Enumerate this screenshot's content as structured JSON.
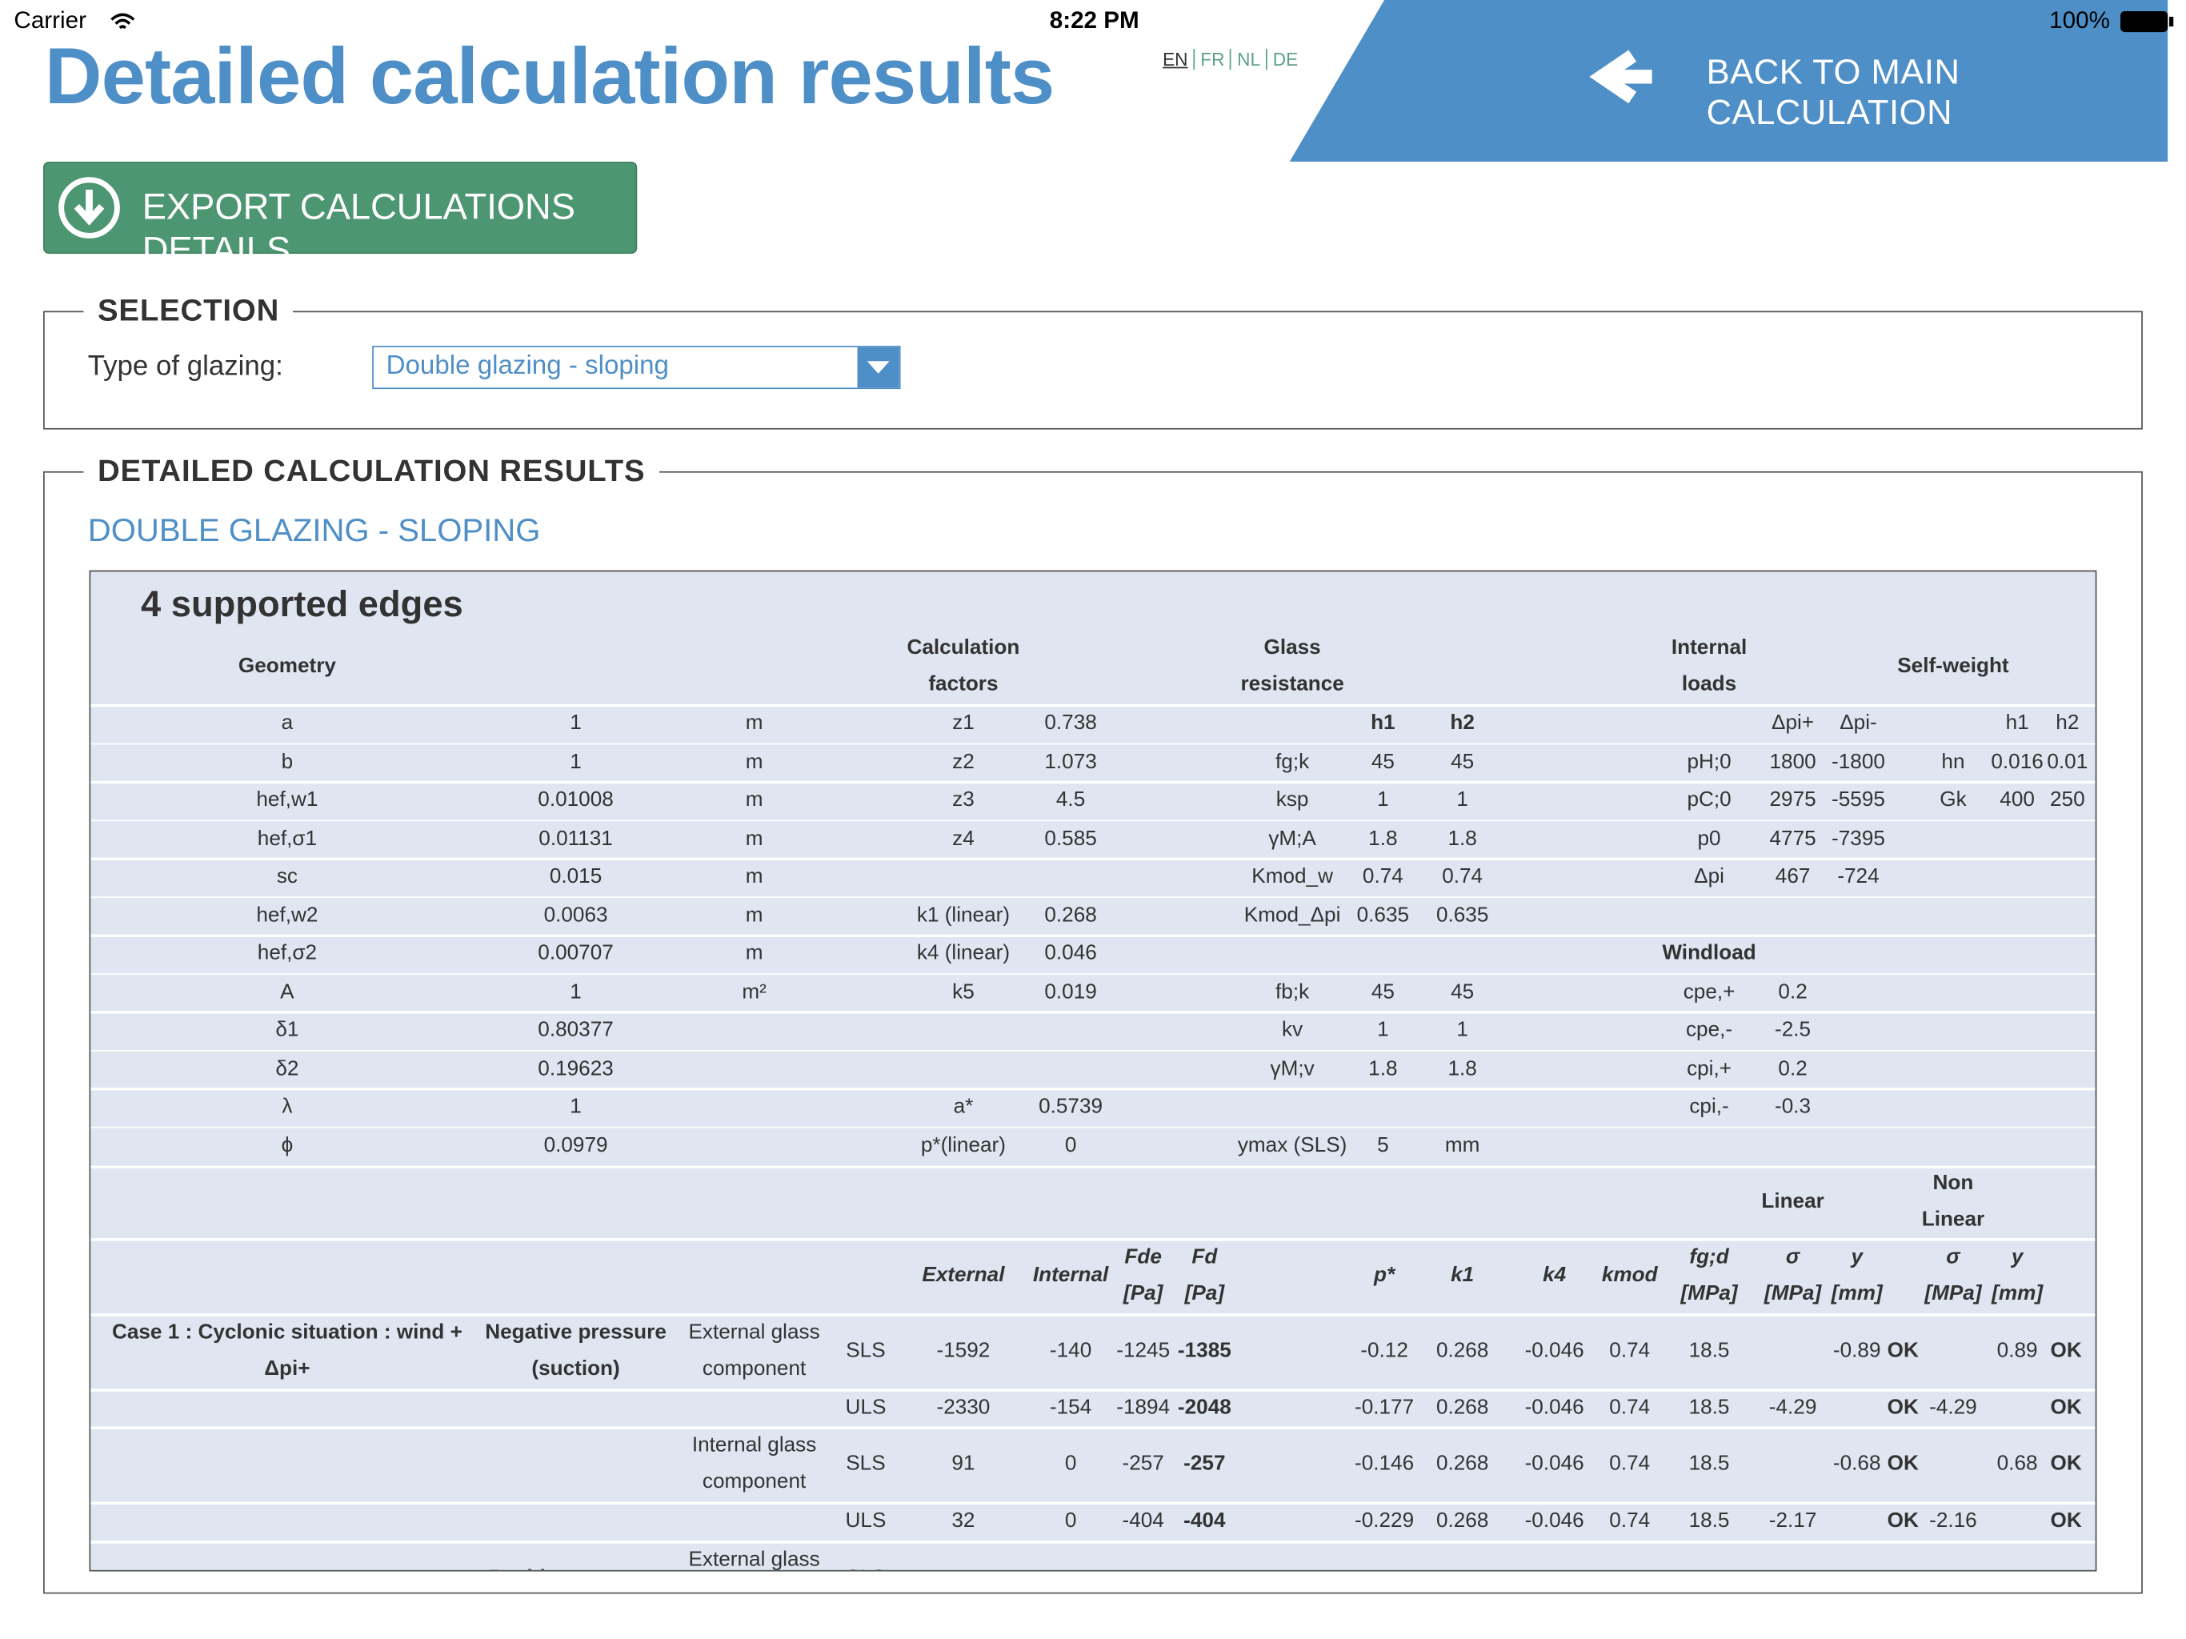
{
  "status_bar": {
    "carrier": "Carrier",
    "time": "8:22 PM",
    "battery": "100%"
  },
  "header": {
    "title": "Detailed calculation results",
    "languages": [
      "EN",
      "FR",
      "NL",
      "DE"
    ],
    "back_button": "BACK TO MAIN CALCULATION"
  },
  "export_button": "EXPORT CALCULATIONS DETAILS",
  "selection": {
    "legend": "SELECTION",
    "label": "Type of glazing:",
    "value": "Double glazing - sloping"
  },
  "results": {
    "legend": "DETAILED CALCULATION RESULTS",
    "subtitle": "DOUBLE GLAZING - SLOPING",
    "table": {
      "title": "4 supported edges",
      "top_header": [
        "Geometry",
        null,
        null,
        "Calculation factors",
        null,
        "Glass resistance",
        null,
        null,
        "Internal loads",
        null,
        null,
        "Self-weight",
        null,
        null
      ],
      "top_rows": [
        [
          "a",
          "1",
          "m",
          "z1",
          "0.738",
          null,
          "h1",
          "h2",
          null,
          "Δpi+",
          "Δpi-",
          null,
          "h1",
          "h2"
        ],
        [
          "b",
          "1",
          "m",
          "z2",
          "1.073",
          "fg;k",
          "45",
          "45",
          "pH;0",
          "1800",
          "-1800",
          "hn",
          "0.016",
          "0.01"
        ],
        [
          "hef,w1",
          "0.01008",
          "m",
          "z3",
          "4.5",
          "ksp",
          "1",
          "1",
          "pC;0",
          "2975",
          "-5595",
          "Gk",
          "400",
          "250"
        ],
        [
          "hef,σ1",
          "0.01131",
          "m",
          "z4",
          "0.585",
          "γM;A",
          "1.8",
          "1.8",
          "p0",
          "4775",
          "-7395",
          null,
          null,
          null
        ],
        [
          "sc",
          "0.015",
          "m",
          null,
          null,
          "Kmod_w",
          "0.74",
          "0.74",
          "Δpi",
          "467",
          "-724",
          null,
          null,
          null
        ],
        [
          "hef,w2",
          "0.0063",
          "m",
          "k1 (linear)",
          "0.268",
          "Kmod_Δpi",
          "0.635",
          "0.635",
          null,
          null,
          null,
          null,
          null,
          null
        ],
        [
          "hef,σ2",
          "0.00707",
          "m",
          "k4 (linear)",
          "0.046",
          null,
          null,
          null,
          "Windload",
          null,
          null,
          null,
          null,
          null
        ],
        [
          "A",
          "1",
          "m²",
          "k5",
          "0.019",
          "fb;k",
          "45",
          "45",
          "cpe,+",
          "0.2",
          null,
          null,
          null,
          null
        ],
        [
          "δ1",
          "0.80377",
          null,
          null,
          null,
          "kv",
          "1",
          "1",
          "cpe,-",
          "-2.5",
          null,
          null,
          null,
          null
        ],
        [
          "δ2",
          "0.19623",
          null,
          null,
          null,
          "γM;v",
          "1.8",
          "1.8",
          "cpi,+",
          "0.2",
          null,
          null,
          null,
          null
        ],
        [
          "λ",
          "1",
          null,
          "a*",
          "0.5739",
          null,
          null,
          null,
          "cpi,-",
          "-0.3",
          null,
          null,
          null,
          null
        ],
        [
          "ϕ",
          "0.0979",
          null,
          "p*(linear)",
          "0",
          "ymax (SLS)",
          "5",
          "mm",
          null,
          null,
          null,
          null,
          null,
          null
        ]
      ],
      "group_header": [
        null,
        null,
        null,
        null,
        null,
        null,
        null,
        null,
        null,
        null,
        null,
        null,
        null,
        "Linear",
        null,
        null,
        "Non Linear",
        null,
        null
      ],
      "column_header": [
        null,
        null,
        null,
        null,
        "External",
        "Internal",
        "Fde [Pa]",
        "Fd [Pa]",
        "p*",
        "k1",
        "k4",
        "kmod",
        "fg;d [MPa]",
        "σ [MPa]",
        "y [mm]",
        null,
        "σ [MPa]",
        "y [mm]",
        null
      ],
      "case_rows": [
        [
          "Case 1 : Cyclonic situation : wind + Δpi+",
          "Negative pressure (suction)",
          "External glass component",
          "SLS",
          "-1592",
          "-140",
          "-1245",
          "-1385",
          "-0.12",
          "0.268",
          "-0.046",
          "0.74",
          "18.5",
          null,
          "-0.89",
          "OK",
          null,
          "0.89",
          "OK"
        ],
        [
          null,
          null,
          null,
          "ULS",
          "-2330",
          "-154",
          "-1894",
          "-2048",
          "-0.177",
          "0.268",
          "-0.046",
          "0.74",
          "18.5",
          "-4.29",
          null,
          "OK",
          "-4.29",
          null,
          "OK"
        ],
        [
          null,
          null,
          "Internal glass component",
          "SLS",
          "91",
          "0",
          "-257",
          "-257",
          "-0.146",
          "0.268",
          "-0.046",
          "0.74",
          "18.5",
          null,
          "-0.68",
          "OK",
          null,
          "0.68",
          "OK"
        ],
        [
          null,
          null,
          null,
          "ULS",
          "32",
          "0",
          "-404",
          "-404",
          "-0.229",
          "0.268",
          "-0.046",
          "0.74",
          "18.5",
          "-2.17",
          null,
          "OK",
          "-2.16",
          null,
          "OK"
        ],
        [
          null,
          "Positive pressure",
          "External glass component",
          "SLS",
          null,
          null,
          null,
          null,
          null,
          null,
          null,
          null,
          null,
          null,
          null,
          null,
          null,
          null,
          null
        ]
      ]
    }
  }
}
